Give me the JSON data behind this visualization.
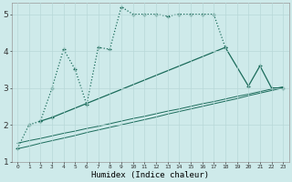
{
  "xlabel": "Humidex (Indice chaleur)",
  "background_color": "#ceeaea",
  "line_color": "#1a6b5a",
  "grid_color": "#b8d8d8",
  "x_min": 0,
  "x_max": 23,
  "y_min": 1,
  "y_max": 5,
  "line1_dotted": {
    "x": [
      0,
      1,
      2,
      3,
      4,
      5,
      6,
      7,
      8,
      9,
      10,
      11,
      12,
      13,
      14,
      15,
      16,
      17,
      18
    ],
    "y": [
      1.35,
      2.0,
      2.1,
      3.0,
      4.05,
      3.5,
      2.55,
      4.1,
      4.05,
      5.2,
      5.0,
      5.0,
      5.0,
      4.95,
      5.0,
      5.0,
      5.0,
      5.0,
      4.1
    ]
  },
  "line2_diagonal": {
    "x": [
      2,
      3,
      18,
      20,
      21,
      22,
      23
    ],
    "y": [
      2.1,
      2.2,
      4.1,
      3.05,
      3.6,
      3.0,
      3.0
    ]
  },
  "line3_straight1": {
    "x": [
      0,
      1,
      2,
      3,
      4,
      5,
      6,
      7,
      8,
      9,
      10,
      11,
      12,
      13,
      14,
      15,
      16,
      17,
      18,
      19,
      20,
      21,
      22,
      23
    ],
    "y": [
      1.35,
      1.42,
      1.5,
      1.57,
      1.64,
      1.71,
      1.79,
      1.86,
      1.93,
      2.0,
      2.07,
      2.14,
      2.21,
      2.29,
      2.36,
      2.43,
      2.5,
      2.57,
      2.64,
      2.71,
      2.79,
      2.86,
      2.93,
      3.0
    ]
  },
  "line4_straight2": {
    "x": [
      0,
      1,
      2,
      3,
      4,
      5,
      6,
      7,
      8,
      9,
      10,
      11,
      12,
      13,
      14,
      15,
      16,
      17,
      18,
      19,
      20,
      21,
      22,
      23
    ],
    "y": [
      1.5,
      1.57,
      1.63,
      1.7,
      1.77,
      1.83,
      1.9,
      1.96,
      2.03,
      2.1,
      2.17,
      2.23,
      2.3,
      2.37,
      2.43,
      2.5,
      2.57,
      2.63,
      2.7,
      2.77,
      2.83,
      2.9,
      2.97,
      3.03
    ]
  }
}
